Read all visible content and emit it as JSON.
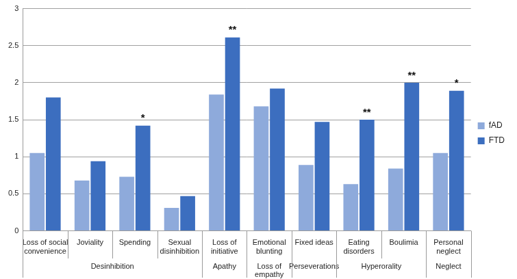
{
  "chart_data": {
    "type": "bar",
    "categories": [
      "Loss of social convenience",
      "Joviality",
      "Spending",
      "Sexual disinhibition",
      "Loss of initiative",
      "Emotional blunting",
      "Fixed ideas",
      "Eating disorders",
      "Boulimia",
      "Personal neglect"
    ],
    "series": [
      {
        "name": "fAD",
        "color": "#8eaadb",
        "values": [
          1.05,
          0.68,
          0.73,
          0.31,
          1.84,
          1.68,
          0.89,
          0.63,
          0.84,
          1.05
        ]
      },
      {
        "name": "FTD",
        "color": "#3c6ebf",
        "values": [
          1.8,
          0.94,
          1.42,
          0.47,
          2.61,
          1.92,
          1.47,
          1.5,
          2.0,
          1.89
        ]
      }
    ],
    "groups": [
      {
        "label": "Desinhibition",
        "categories": [
          "Loss of social convenience",
          "Joviality",
          "Spending",
          "Sexual disinhibition"
        ]
      },
      {
        "label": "Apathy",
        "categories": [
          "Loss of initiative"
        ]
      },
      {
        "label": "Loss of empathy",
        "categories": [
          "Emotional blunting"
        ]
      },
      {
        "label": "Perseverations",
        "categories": [
          "Fixed ideas"
        ]
      },
      {
        "label": "Hyperorality",
        "categories": [
          "Eating disorders",
          "Boulimia"
        ]
      },
      {
        "label": "Neglect",
        "categories": [
          "Personal neglect"
        ]
      }
    ],
    "annotations": [
      {
        "category": "Spending",
        "series": "FTD",
        "text": "*"
      },
      {
        "category": "Loss of initiative",
        "series": "FTD",
        "text": "**"
      },
      {
        "category": "Eating disorders",
        "series": "FTD",
        "text": "**"
      },
      {
        "category": "Boulimia",
        "series": "FTD",
        "text": "**"
      },
      {
        "category": "Personal neglect",
        "series": "FTD",
        "text": "*"
      }
    ],
    "ylim": [
      0,
      3
    ],
    "yticks": [
      0,
      0.5,
      1,
      1.5,
      2,
      2.5,
      3
    ],
    "grid": true,
    "legend": "right"
  }
}
